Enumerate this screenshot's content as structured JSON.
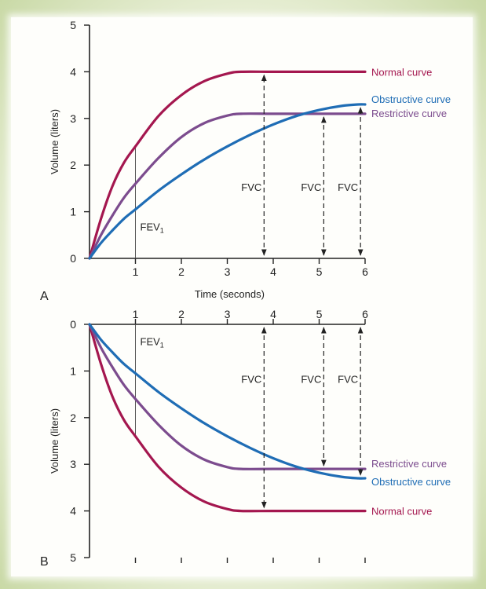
{
  "colors": {
    "normal": "#a4174f",
    "restrictive": "#7c4c8e",
    "obstructive": "#1f6db5",
    "axis": "#222222",
    "text": "#222222"
  },
  "chart_data": [
    {
      "type": "line",
      "panel_label": "A",
      "xlabel": "Time (seconds)",
      "ylabel": "Volume (liters)",
      "xlim": [
        0,
        6
      ],
      "ylim": [
        0,
        5
      ],
      "y_inverted": false,
      "x_ticks": [
        "1",
        "2",
        "3",
        "4",
        "5",
        "6"
      ],
      "y_ticks": [
        "0",
        "1",
        "2",
        "3",
        "4",
        "5"
      ],
      "series": [
        {
          "name": "Normal curve",
          "color_key": "normal",
          "x": [
            0,
            0.25,
            0.5,
            0.75,
            1,
            1.5,
            2,
            2.5,
            3,
            3.3,
            4,
            5,
            6
          ],
          "y": [
            0,
            0.85,
            1.55,
            2.05,
            2.4,
            3.05,
            3.5,
            3.8,
            3.96,
            4.0,
            4.0,
            4.0,
            4.0
          ]
        },
        {
          "name": "Restrictive curve",
          "color_key": "restrictive",
          "x": [
            0,
            0.25,
            0.5,
            0.75,
            1,
            1.5,
            2,
            2.5,
            3,
            3.3,
            4,
            5,
            6
          ],
          "y": [
            0,
            0.5,
            0.92,
            1.3,
            1.6,
            2.15,
            2.6,
            2.9,
            3.06,
            3.1,
            3.1,
            3.1,
            3.1
          ]
        },
        {
          "name": "Obstructive curve",
          "color_key": "obstructive",
          "x": [
            0,
            0.25,
            0.5,
            0.75,
            1,
            1.5,
            2,
            2.5,
            3,
            3.5,
            4,
            4.5,
            5,
            5.5,
            5.85,
            6
          ],
          "y": [
            0,
            0.33,
            0.6,
            0.85,
            1.05,
            1.45,
            1.8,
            2.12,
            2.4,
            2.65,
            2.87,
            3.05,
            3.18,
            3.27,
            3.3,
            3.3
          ]
        }
      ],
      "fev1": {
        "label": "FEV",
        "subscript": "1",
        "x": 1,
        "y_to": 2.4
      },
      "fvc_markers": [
        {
          "label": "FVC",
          "x": 3.8,
          "y_to": 4.0
        },
        {
          "label": "FVC",
          "x": 5.1,
          "y_to": 3.1
        },
        {
          "label": "FVC",
          "x": 5.9,
          "y_to": 3.3
        }
      ]
    },
    {
      "type": "line",
      "panel_label": "B",
      "xlabel": "",
      "ylabel": "Volume (liters)",
      "xlim": [
        0,
        6
      ],
      "ylim": [
        0,
        5
      ],
      "y_inverted": true,
      "x_ticks": [
        "1",
        "2",
        "3",
        "4",
        "5",
        "6"
      ],
      "y_ticks": [
        "0",
        "1",
        "2",
        "3",
        "4",
        "5"
      ],
      "series": [
        {
          "name": "Normal curve",
          "color_key": "normal",
          "x": [
            0,
            0.25,
            0.5,
            0.75,
            1,
            1.5,
            2,
            2.5,
            3,
            3.3,
            4,
            5,
            6
          ],
          "y": [
            0,
            0.85,
            1.55,
            2.05,
            2.4,
            3.05,
            3.5,
            3.8,
            3.96,
            4.0,
            4.0,
            4.0,
            4.0
          ]
        },
        {
          "name": "Restrictive curve",
          "color_key": "restrictive",
          "x": [
            0,
            0.25,
            0.5,
            0.75,
            1,
            1.5,
            2,
            2.5,
            3,
            3.3,
            4,
            5,
            6
          ],
          "y": [
            0,
            0.5,
            0.92,
            1.3,
            1.6,
            2.15,
            2.6,
            2.9,
            3.06,
            3.1,
            3.1,
            3.1,
            3.1
          ]
        },
        {
          "name": "Obstructive curve",
          "color_key": "obstructive",
          "x": [
            0,
            0.25,
            0.5,
            0.75,
            1,
            1.5,
            2,
            2.5,
            3,
            3.5,
            4,
            4.5,
            5,
            5.5,
            5.85,
            6
          ],
          "y": [
            0,
            0.33,
            0.6,
            0.85,
            1.05,
            1.45,
            1.8,
            2.12,
            2.4,
            2.65,
            2.87,
            3.05,
            3.18,
            3.27,
            3.3,
            3.3
          ]
        }
      ],
      "fev1": {
        "label": "FEV",
        "subscript": "1",
        "x": 1,
        "y_to": 2.4
      },
      "fvc_markers": [
        {
          "label": "FVC",
          "x": 3.8,
          "y_to": 4.0
        },
        {
          "label": "FVC",
          "x": 5.1,
          "y_to": 3.1
        },
        {
          "label": "FVC",
          "x": 5.9,
          "y_to": 3.3
        }
      ]
    }
  ]
}
